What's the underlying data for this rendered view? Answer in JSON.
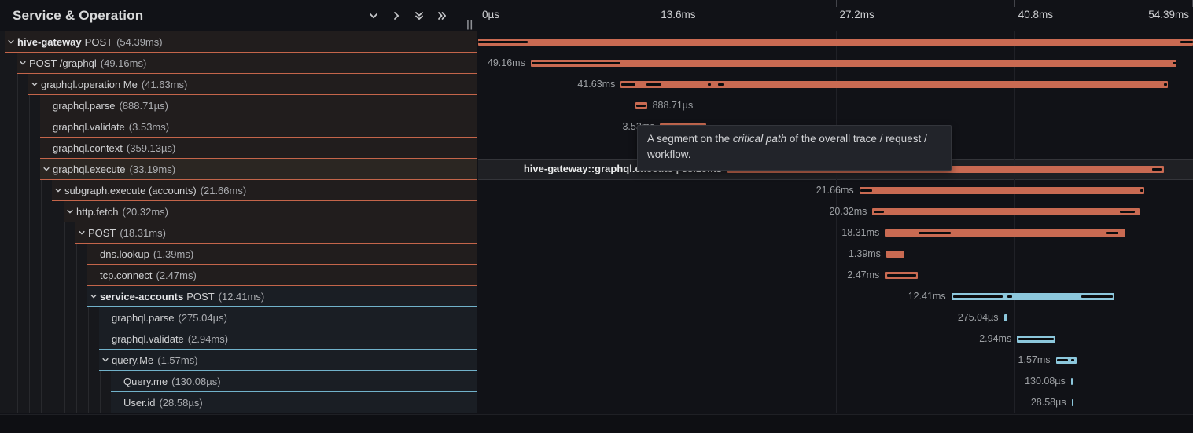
{
  "panel": {
    "left_header_title": "Service & Operation",
    "resize_handle": "||",
    "header_icons": [
      "chevron-down",
      "chevron-right",
      "double-chevron-down",
      "double-chevron-right"
    ]
  },
  "axis": {
    "total_ms": 54.39,
    "ticks": [
      {
        "label": "0µs",
        "pct": 0
      },
      {
        "label": "13.6ms",
        "pct": 25
      },
      {
        "label": "27.2ms",
        "pct": 50
      },
      {
        "label": "40.8ms",
        "pct": 75
      },
      {
        "label": "54.39ms",
        "pct": 100
      }
    ]
  },
  "colors": {
    "hive_bar": "#c96a52",
    "hive_underline": "#c4654a",
    "accounts_bar": "#8cc7dc",
    "accounts_underline": "#71b2ca",
    "critical_path_segment": "#0b0c0e"
  },
  "tooltip": {
    "pre": "A segment on the ",
    "italic": "critical path",
    "post": " of the overall trace / request / workflow."
  },
  "rows": [
    {
      "depth": 0,
      "service": "hive",
      "name_bold": "hive-gateway",
      "operation": "POST",
      "duration": "(54.39ms)",
      "has_children": true,
      "start_ms": 0,
      "duration_ms": 54.39,
      "bar_label": "",
      "label_side": "left",
      "critical_segments": [
        [
          0,
          3.74
        ],
        [
          53.43,
          54.39
        ]
      ]
    },
    {
      "depth": 1,
      "service": "hive",
      "name_bold": "",
      "operation": "POST /graphql",
      "duration": "(49.16ms)",
      "has_children": true,
      "start_ms": 4.0,
      "duration_ms": 49.16,
      "bar_label": "49.16ms",
      "label_side": "left",
      "critical_segments": [
        [
          4.05,
          10.85
        ],
        [
          52.86,
          53.12
        ]
      ]
    },
    {
      "depth": 2,
      "service": "hive",
      "name_bold": "",
      "operation": "graphql.operation Me",
      "duration": "(41.63ms)",
      "has_children": true,
      "start_ms": 10.85,
      "duration_ms": 41.63,
      "bar_label": "41.63ms",
      "label_side": "left",
      "critical_segments": [
        [
          10.9,
          11.95
        ],
        [
          12.8,
          13.95
        ],
        [
          17.45,
          17.72
        ],
        [
          18.25,
          18.65
        ],
        [
          52.18,
          52.44
        ]
      ]
    },
    {
      "depth": 3,
      "service": "hive",
      "name_bold": "",
      "operation": "graphql.parse",
      "duration": "(888.71µs)",
      "has_children": false,
      "start_ms": 11.95,
      "duration_ms": 0.889,
      "bar_label": "888.71µs",
      "label_side": "right",
      "critical_segments": [
        [
          12.0,
          12.75
        ]
      ]
    },
    {
      "depth": 3,
      "service": "hive",
      "name_bold": "",
      "operation": "graphql.validate",
      "duration": "(3.53ms)",
      "has_children": false,
      "start_ms": 13.85,
      "duration_ms": 3.53,
      "bar_label": "3.53ms",
      "label_side": "left",
      "critical_segments": [
        [
          13.95,
          17.25
        ]
      ]
    },
    {
      "depth": 3,
      "service": "hive",
      "name_bold": "",
      "operation": "graphql.context",
      "duration": "(359.13µs)",
      "has_children": false,
      "start_ms": 17.8,
      "duration_ms": 0.359,
      "bar_label": "359.13µs",
      "label_side": "left",
      "critical_segments": []
    },
    {
      "depth": 3,
      "service": "hive",
      "name_bold": "",
      "operation": "graphql.execute",
      "duration": "(33.19ms)",
      "has_children": true,
      "hovered": true,
      "start_ms": 18.97,
      "duration_ms": 33.19,
      "bar_label": "hive-gateway::graphql.execute | 33.19ms",
      "label_side": "left",
      "critical_segments": [
        [
          18.97,
          28.95
        ],
        [
          51.25,
          52.0
        ]
      ]
    },
    {
      "depth": 4,
      "service": "hive",
      "name_bold": "",
      "operation": "subgraph.execute (accounts)",
      "duration": "(21.66ms)",
      "has_children": true,
      "start_ms": 29.0,
      "duration_ms": 21.66,
      "bar_label": "21.66ms",
      "label_side": "left",
      "critical_segments": [
        [
          29.1,
          29.95
        ],
        [
          50.38,
          50.6
        ]
      ]
    },
    {
      "depth": 5,
      "service": "hive",
      "name_bold": "",
      "operation": "http.fetch",
      "duration": "(20.32ms)",
      "has_children": true,
      "start_ms": 30.0,
      "duration_ms": 20.32,
      "bar_label": "20.32ms",
      "label_side": "left",
      "critical_segments": [
        [
          30.1,
          30.9
        ],
        [
          48.85,
          49.95
        ]
      ]
    },
    {
      "depth": 6,
      "service": "hive",
      "name_bold": "",
      "operation": "POST",
      "duration": "(18.31ms)",
      "has_children": true,
      "start_ms": 30.95,
      "duration_ms": 18.31,
      "bar_label": "18.31ms",
      "label_side": "left",
      "critical_segments": [
        [
          33.5,
          35.95
        ],
        [
          47.8,
          48.7
        ]
      ]
    },
    {
      "depth": 7,
      "service": "hive",
      "name_bold": "",
      "operation": "dns.lookup",
      "duration": "(1.39ms)",
      "has_children": false,
      "start_ms": 31.05,
      "duration_ms": 1.39,
      "bar_label": "1.39ms",
      "label_side": "left",
      "critical_segments": []
    },
    {
      "depth": 7,
      "service": "hive",
      "name_bold": "",
      "operation": "tcp.connect",
      "duration": "(2.47ms)",
      "has_children": false,
      "start_ms": 30.95,
      "duration_ms": 2.47,
      "bar_label": "2.47ms",
      "label_side": "left",
      "critical_segments": [
        [
          31.1,
          33.3
        ]
      ]
    },
    {
      "depth": 7,
      "service": "acct",
      "name_bold": "service-accounts",
      "operation": "POST",
      "duration": "(12.41ms)",
      "has_children": true,
      "start_ms": 36.0,
      "duration_ms": 12.41,
      "bar_label": "12.41ms",
      "label_side": "left",
      "critical_segments": [
        [
          36.15,
          39.9
        ],
        [
          40.25,
          40.65
        ],
        [
          45.9,
          48.3
        ]
      ]
    },
    {
      "depth": 8,
      "service": "acct",
      "name_bold": "",
      "operation": "graphql.parse",
      "duration": "(275.04µs)",
      "has_children": false,
      "start_ms": 40.0,
      "duration_ms": 0.275,
      "bar_label": "275.04µs",
      "label_side": "left",
      "critical_segments": []
    },
    {
      "depth": 8,
      "service": "acct",
      "name_bold": "",
      "operation": "graphql.validate",
      "duration": "(2.94ms)",
      "has_children": false,
      "start_ms": 41.0,
      "duration_ms": 2.94,
      "bar_label": "2.94ms",
      "label_side": "left",
      "critical_segments": [
        [
          41.1,
          43.8
        ]
      ]
    },
    {
      "depth": 8,
      "service": "acct",
      "name_bold": "",
      "operation": "query.Me",
      "duration": "(1.57ms)",
      "has_children": true,
      "start_ms": 43.95,
      "duration_ms": 1.57,
      "bar_label": "1.57ms",
      "label_side": "left",
      "critical_segments": [
        [
          44.05,
          44.85
        ],
        [
          45.1,
          45.35
        ]
      ]
    },
    {
      "depth": 9,
      "service": "acct",
      "name_bold": "",
      "operation": "Query.me",
      "duration": "(130.08µs)",
      "has_children": false,
      "start_ms": 45.1,
      "duration_ms": 0.13,
      "bar_label": "130.08µs",
      "label_side": "left",
      "critical_segments": []
    },
    {
      "depth": 9,
      "service": "acct",
      "name_bold": "",
      "operation": "User.id",
      "duration": "(28.58µs)",
      "has_children": false,
      "start_ms": 45.15,
      "duration_ms": 0.0286,
      "bar_label": "28.58µs",
      "label_side": "left",
      "critical_segments": []
    }
  ]
}
